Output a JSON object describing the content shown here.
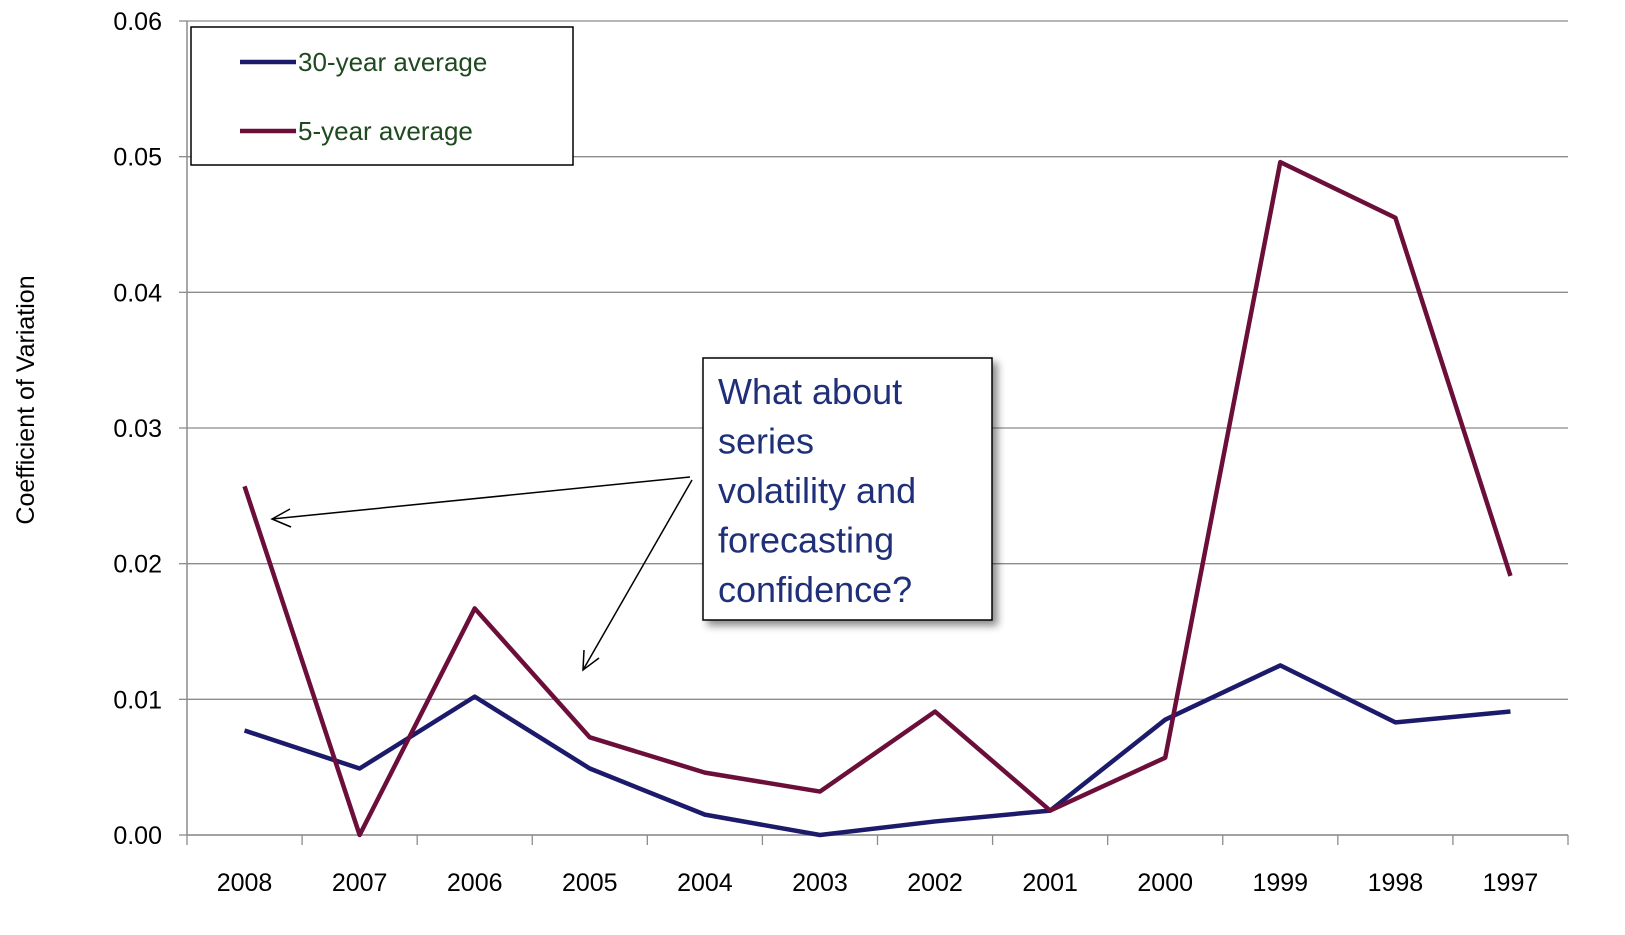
{
  "chart_data": {
    "type": "line",
    "y_label": "Coefficient of Variation",
    "categories": [
      "2008",
      "2007",
      "2006",
      "2005",
      "2004",
      "2003",
      "2002",
      "2001",
      "2000",
      "1999",
      "1998",
      "1997"
    ],
    "series": [
      {
        "name": "30-year average",
        "color": "#1c1a6b",
        "values": [
          0.0077,
          0.0049,
          0.0102,
          0.0049,
          0.0015,
          0,
          0.001,
          0.0018,
          0.0085,
          0.0125,
          0.0083,
          0.0091
        ]
      },
      {
        "name": "5-year average",
        "color": "#6b0f3a",
        "values": [
          0.0257,
          0,
          0.0167,
          0.0072,
          0.0046,
          0.0032,
          0.0091,
          0.0018,
          0.0057,
          0.0496,
          0.0455,
          0.0191
        ]
      }
    ],
    "ylim": [
      0,
      0.06
    ],
    "yticks": [
      {
        "value": 0,
        "label": "0.00"
      },
      0.01,
      0.02,
      0.03,
      0.04,
      0.05,
      0.06
    ],
    "grid": true,
    "legend": "top-left",
    "annotation": [
      "What about",
      "series",
      "volatility and",
      "forecasting",
      "confidence?"
    ]
  }
}
